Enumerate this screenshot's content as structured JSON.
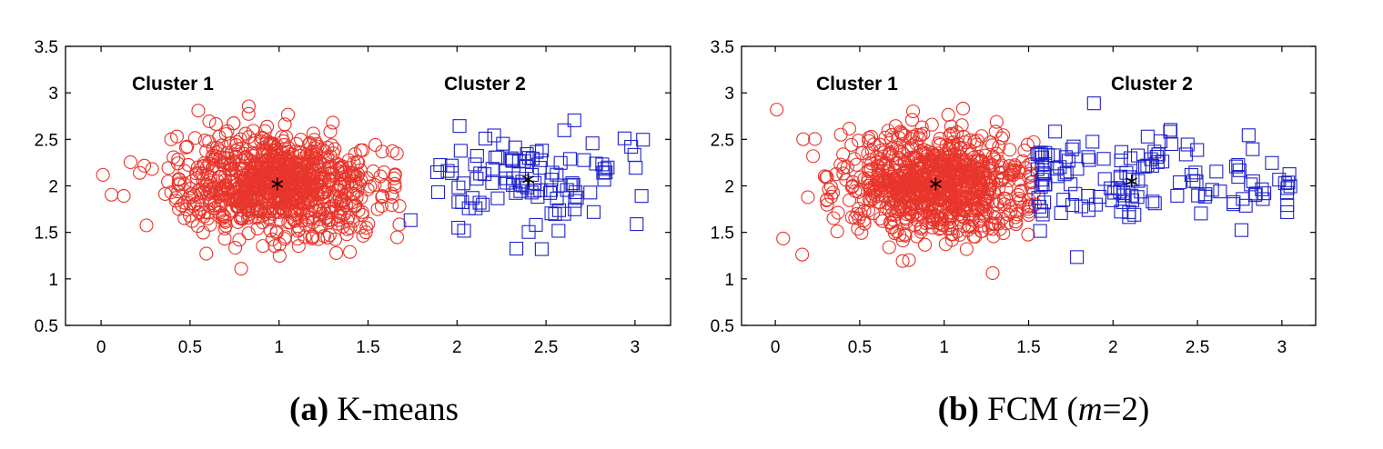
{
  "chart_data": [
    {
      "type": "scatter",
      "caption_tag": "(a)",
      "caption_text": "K-means",
      "xlim": [
        -0.2,
        3.2
      ],
      "ylim": [
        0.5,
        3.5
      ],
      "xticks": [
        "0",
        "0.5",
        "1",
        "1.5",
        "2",
        "2.5",
        "3"
      ],
      "yticks": [
        "0.5",
        "1",
        "1.5",
        "2",
        "2.5",
        "3",
        "3.5"
      ],
      "grid": false,
      "clusters": [
        {
          "label": "Cluster 1",
          "marker": "circle",
          "color": "#e8352b",
          "center": [
            0.99,
            2.02
          ],
          "count": 900,
          "sx": 0.28,
          "sy": 0.27,
          "xmin": 0.0,
          "xmax": 1.68
        },
        {
          "label": "Cluster 2",
          "marker": "square",
          "color": "#1f23c9",
          "center": [
            2.4,
            2.07
          ],
          "count": 110,
          "sx": 0.32,
          "sy": 0.27,
          "xmin": 1.7,
          "xmax": 3.05
        }
      ],
      "centroid_marker": "*"
    },
    {
      "type": "scatter",
      "caption_tag": "(b)",
      "caption_text": "FCM (",
      "caption_m": "m",
      "caption_tail": "=2)",
      "xlim": [
        -0.2,
        3.2
      ],
      "ylim": [
        0.5,
        3.5
      ],
      "xticks": [
        "0",
        "0.5",
        "1",
        "1.5",
        "2",
        "2.5",
        "3"
      ],
      "yticks": [
        "0.5",
        "1",
        "1.5",
        "2",
        "2.5",
        "3",
        "3.5"
      ],
      "grid": false,
      "clusters": [
        {
          "label": "Cluster 1",
          "marker": "circle",
          "color": "#e8352b",
          "center": [
            0.95,
            2.02
          ],
          "count": 870,
          "sx": 0.27,
          "sy": 0.27,
          "xmin": 0.0,
          "xmax": 1.54
        },
        {
          "label": "Cluster 2",
          "marker": "square",
          "color": "#1f23c9",
          "center": [
            2.11,
            2.05
          ],
          "count": 140,
          "sx": 0.45,
          "sy": 0.27,
          "xmin": 1.55,
          "xmax": 3.05
        }
      ],
      "centroid_marker": "*"
    }
  ]
}
